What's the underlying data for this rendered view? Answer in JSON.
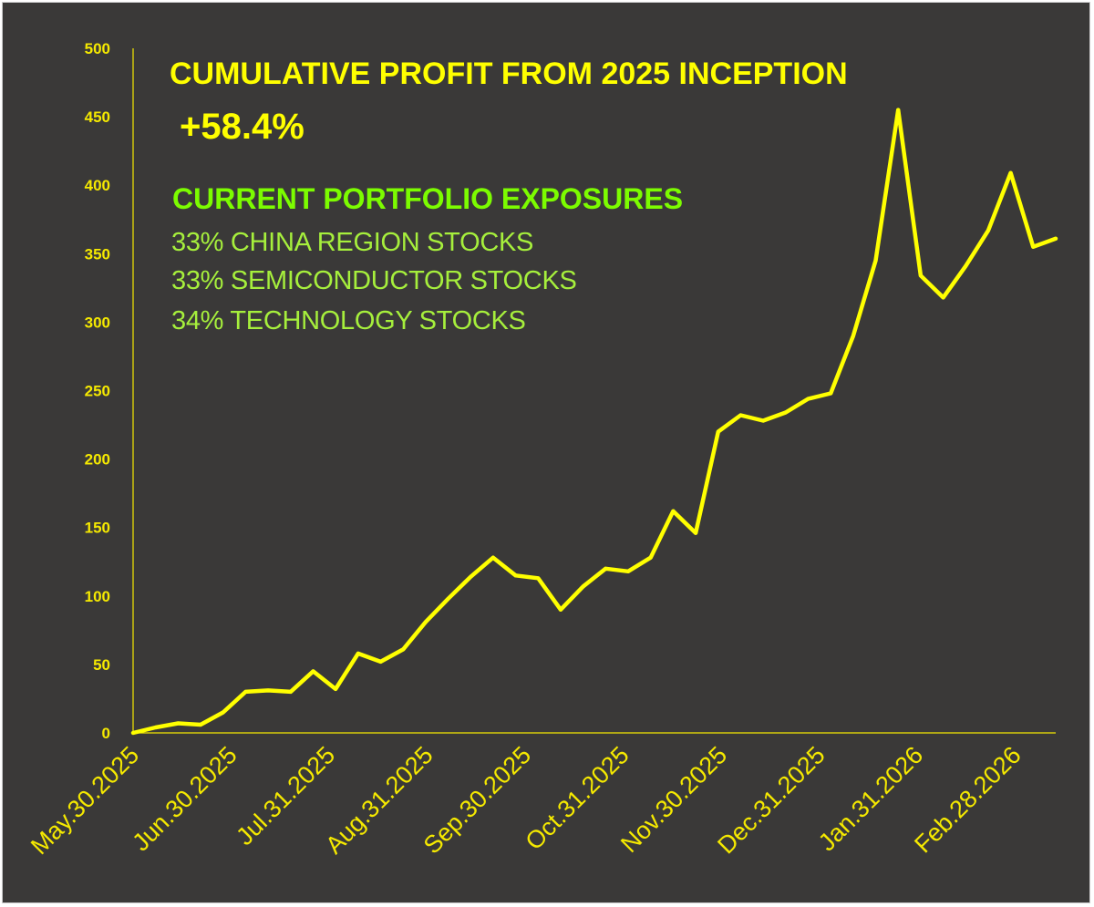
{
  "overlay": {
    "title": "CUMULATIVE PROFIT FROM 2025 INCEPTION",
    "profit": "+58.4%",
    "exposures_heading": "CURRENT PORTFOLIO EXPOSURES",
    "exposures": [
      "33% CHINA REGION STOCKS",
      "33% SEMICONDUCTOR STOCKS",
      "34% TECHNOLOGY STOCKS"
    ]
  },
  "colors": {
    "background": "#3a3938",
    "line": "#ffff00",
    "axis": "#f5e900",
    "heading_green": "#7cfc00",
    "item_green": "#a6ef3c"
  },
  "chart_data": {
    "type": "line",
    "title": "CUMULATIVE PROFIT FROM 2025 INCEPTION",
    "xlabel": "",
    "ylabel": "",
    "ylim": [
      0,
      500
    ],
    "yticks": [
      0,
      50,
      100,
      150,
      200,
      250,
      300,
      350,
      400,
      450,
      500
    ],
    "grid": false,
    "legend": "none",
    "xtick_labels": [
      "May.30.2025",
      "Jun.30.2025",
      "Jul.31.2025",
      "Aug.31.2025",
      "Sep.30.2025",
      "Oct.31.2025",
      "Nov.30.2025",
      "Dec.31.2025",
      "Jan.31.2026",
      "Feb.28.2026"
    ],
    "series": [
      {
        "values": [
          0,
          4,
          7,
          6,
          15,
          30,
          31,
          30,
          45,
          32,
          58,
          52,
          61,
          81,
          98,
          114,
          128,
          115,
          113,
          90,
          107,
          120,
          118,
          128,
          162,
          146,
          220,
          232,
          228,
          234,
          244,
          248,
          290,
          345,
          455,
          334,
          318,
          341,
          367,
          409,
          355,
          361
        ]
      }
    ]
  }
}
